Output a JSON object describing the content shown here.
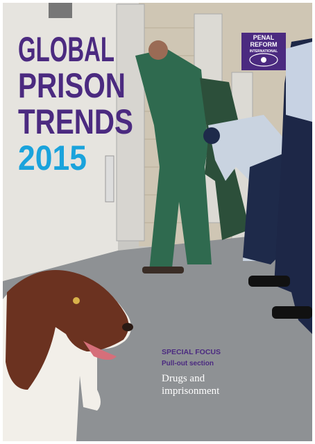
{
  "title": {
    "lines": [
      "GLOBAL",
      "PRISON",
      "TRENDS"
    ],
    "year": "2015"
  },
  "logo": {
    "lines": [
      "PENAL",
      "REFORM",
      "INTERNATIONAL"
    ]
  },
  "focus": {
    "label": "SPECIAL FOCUS",
    "subtitle": "Pull-out section",
    "topic_lines": [
      "Drugs and",
      "imprisonment"
    ]
  }
}
